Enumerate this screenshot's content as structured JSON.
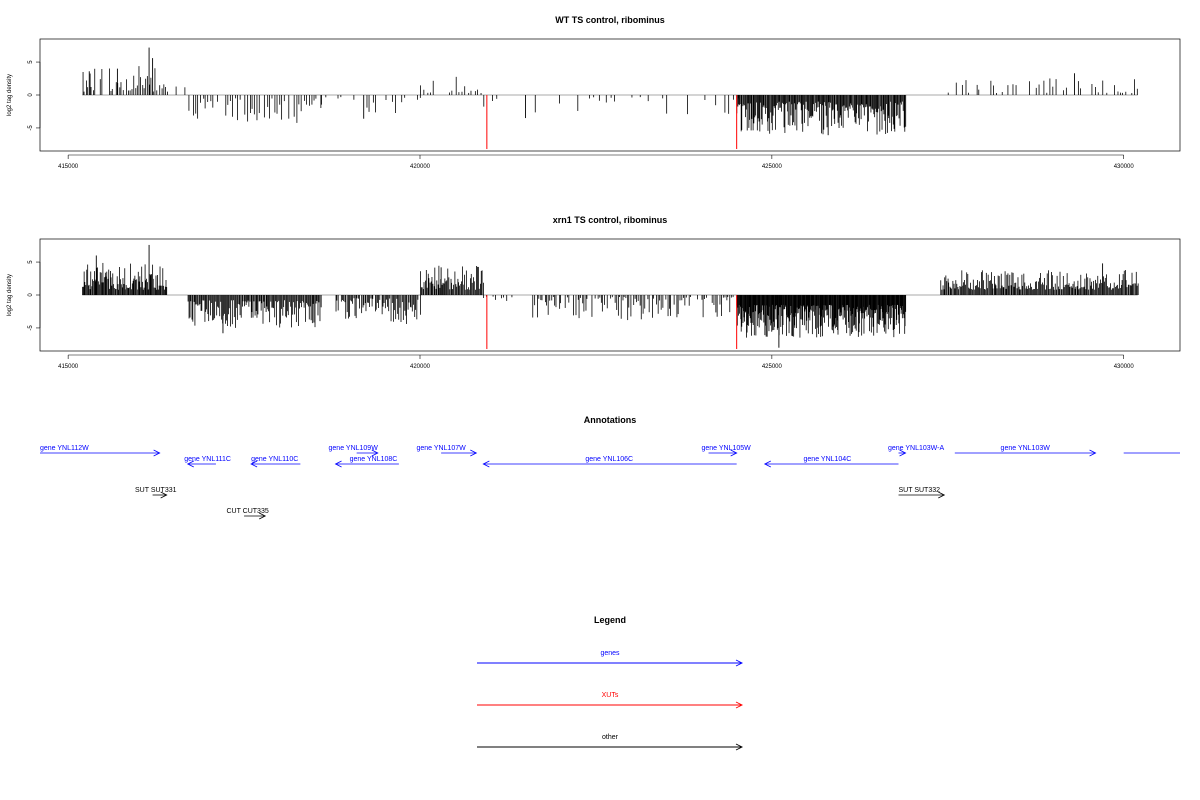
{
  "chart_data": [
    {
      "type": "bar",
      "title": "WT TS control, ribominus",
      "ylabel": "log2 tag density",
      "xlim": [
        414600,
        430800
      ],
      "ylim": [
        -8.5,
        8.5
      ],
      "xticks": [
        "415000",
        "420000",
        "425000",
        "430000"
      ],
      "yticks": [
        "5",
        "0",
        "-5"
      ],
      "baseline": {
        "x": [
          415200,
          430200
        ],
        "color": "#aaaaaa"
      },
      "red_lines": [
        {
          "x": 420950,
          "y": -8.2
        },
        {
          "x": 424500,
          "y": -8.2
        }
      ],
      "regions": [
        {
          "x": [
            415200,
            416400
          ],
          "y": [
            0.5,
            4.5
          ],
          "sign": 1,
          "step": 25,
          "density": 0.9
        },
        {
          "x": [
            416400,
            416700
          ],
          "y": [
            0.3,
            1.5
          ],
          "sign": 1,
          "step": 60,
          "density": 0.3
        },
        {
          "x": [
            416700,
            418600
          ],
          "y": [
            0.5,
            4.5
          ],
          "sign": -1,
          "step": 35,
          "density": 0.8
        },
        {
          "x": [
            418600,
            420000
          ],
          "y": [
            0.3,
            3.0
          ],
          "sign": -1,
          "step": 45,
          "density": 0.6
        },
        {
          "x": [
            420000,
            420900
          ],
          "y": [
            0.3,
            2.8
          ],
          "sign": 1,
          "step": 45,
          "density": 0.7
        },
        {
          "x": [
            420900,
            424500
          ],
          "y": [
            0.3,
            3.0
          ],
          "sign": -1,
          "step": 60,
          "density": 0.4
        },
        {
          "x": [
            424500,
            426900
          ],
          "y": [
            1.0,
            6.0
          ],
          "sign": -1,
          "step": 12,
          "density": 1.0
        },
        {
          "x": [
            427500,
            430200
          ],
          "y": [
            0.3,
            2.6
          ],
          "sign": 1,
          "step": 40,
          "density": 0.6
        }
      ],
      "peaks": [
        {
          "x": 416150,
          "y": 7.2
        },
        {
          "x": 415700,
          "y": 4.0
        },
        {
          "x": 415300,
          "y": 3.6
        },
        {
          "x": 416200,
          "y": 5.6
        },
        {
          "x": 425800,
          "y": -6.1
        },
        {
          "x": 421500,
          "y": -3.5
        },
        {
          "x": 419200,
          "y": -3.6
        },
        {
          "x": 429300,
          "y": 3.3
        }
      ]
    },
    {
      "type": "bar",
      "title": "xrn1 TS control, ribominus",
      "ylabel": "log2 tag density",
      "xlim": [
        414600,
        430800
      ],
      "ylim": [
        -8.5,
        8.5
      ],
      "xticks": [
        "415000",
        "420000",
        "425000",
        "430000"
      ],
      "yticks": [
        "5",
        "0",
        "-5"
      ],
      "baseline": {
        "x": [
          415200,
          430200
        ],
        "color": "#aaaaaa"
      },
      "red_lines": [
        {
          "x": 420950,
          "y": -8.2
        },
        {
          "x": 424500,
          "y": -8.2
        }
      ],
      "regions": [
        {
          "x": [
            415200,
            416400
          ],
          "y": [
            0.8,
            5.0
          ],
          "sign": 1,
          "step": 12,
          "density": 1.0
        },
        {
          "x": [
            416700,
            418600
          ],
          "y": [
            0.8,
            5.0
          ],
          "sign": -1,
          "step": 14,
          "density": 1.0
        },
        {
          "x": [
            418800,
            420000
          ],
          "y": [
            0.5,
            4.5
          ],
          "sign": -1,
          "step": 16,
          "density": 0.9
        },
        {
          "x": [
            420000,
            420900
          ],
          "y": [
            0.8,
            4.5
          ],
          "sign": 1,
          "step": 14,
          "density": 1.0
        },
        {
          "x": [
            420900,
            421300
          ],
          "y": [
            0.2,
            1.0
          ],
          "sign": -1,
          "step": 40,
          "density": 0.6
        },
        {
          "x": [
            421600,
            424500
          ],
          "y": [
            0.3,
            4.0
          ],
          "sign": -1,
          "step": 22,
          "density": 0.8
        },
        {
          "x": [
            424500,
            426900
          ],
          "y": [
            1.5,
            6.5
          ],
          "sign": -1,
          "step": 8,
          "density": 1.0
        },
        {
          "x": [
            427400,
            430200
          ],
          "y": [
            0.8,
            3.8
          ],
          "sign": 1,
          "step": 14,
          "density": 1.0
        }
      ],
      "peaks": [
        {
          "x": 416150,
          "y": 7.6
        },
        {
          "x": 415400,
          "y": 6.0
        },
        {
          "x": 425100,
          "y": -8.0
        },
        {
          "x": 417200,
          "y": -5.8
        },
        {
          "x": 429700,
          "y": 4.8
        },
        {
          "x": 420300,
          "y": 4.2
        }
      ]
    }
  ],
  "annotations": {
    "title": "Annotations",
    "xlim": [
      414600,
      430800
    ],
    "features": [
      {
        "label": "gene YNL112W",
        "x1": 414600,
        "x2": 416300,
        "row": 0,
        "dir": 1,
        "color": "#0000ff",
        "label_x": 414600
      },
      {
        "label": "gene YNL111C",
        "x1": 416700,
        "x2": 417100,
        "row": 1,
        "dir": -1,
        "color": "#0000ff",
        "label_x": 416650
      },
      {
        "label": "gene YNL110C",
        "x1": 417600,
        "x2": 418300,
        "row": 1,
        "dir": -1,
        "color": "#0000ff",
        "label_x": 417600
      },
      {
        "label": "gene YNL109W",
        "x1": 419100,
        "x2": 419400,
        "row": 0,
        "dir": 1,
        "color": "#0000ff",
        "label_x": 418700
      },
      {
        "label": "gene YNL108C",
        "x1": 418800,
        "x2": 419700,
        "row": 1,
        "dir": -1,
        "color": "#0000ff",
        "label_x": 419000
      },
      {
        "label": "gene YNL107W",
        "x1": 420300,
        "x2": 420800,
        "row": 0,
        "dir": 1,
        "color": "#0000ff",
        "label_x": 419950
      },
      {
        "label": "gene YNL106C",
        "x1": 420900,
        "x2": 424500,
        "row": 1,
        "dir": -1,
        "color": "#0000ff",
        "label_x": 422350
      },
      {
        "label": "gene YNL105W",
        "x1": 424100,
        "x2": 424500,
        "row": 0,
        "dir": 1,
        "color": "#0000ff",
        "label_x": 424000
      },
      {
        "label": "gene YNL104C",
        "x1": 424900,
        "x2": 426800,
        "row": 1,
        "dir": -1,
        "color": "#0000ff",
        "label_x": 425450
      },
      {
        "label": "gene YNL103W-A",
        "x1": 426800,
        "x2": 426900,
        "row": 0,
        "dir": 1,
        "color": "#0000ff",
        "label_x": 426650
      },
      {
        "label": "gene YNL103W",
        "x1": 427600,
        "x2": 429600,
        "row": 0,
        "dir": 1,
        "color": "#0000ff",
        "label_x": 428250
      },
      {
        "label": "",
        "x1": 430000,
        "x2": 430800,
        "row": 0,
        "dir": 0,
        "color": "#0000ff",
        "label_x": 430000
      },
      {
        "label": "SUT SUT331",
        "x1": 416200,
        "x2": 416400,
        "row": 2,
        "dir": 1,
        "color": "#000000",
        "label_x": 415950
      },
      {
        "label": "CUT CUT335",
        "x1": 417500,
        "x2": 417800,
        "row": 3,
        "dir": 1,
        "color": "#000000",
        "label_x": 417250
      },
      {
        "label": "SUT SUT332",
        "x1": 426800,
        "x2": 427450,
        "row": 2,
        "dir": 1,
        "color": "#000000",
        "label_x": 426800
      }
    ]
  },
  "legend": {
    "title": "Legend",
    "items": [
      {
        "label": "genes",
        "color": "#0000ff"
      },
      {
        "label": "XUTs",
        "color": "#ff0000"
      },
      {
        "label": "other",
        "color": "#000000"
      }
    ]
  }
}
